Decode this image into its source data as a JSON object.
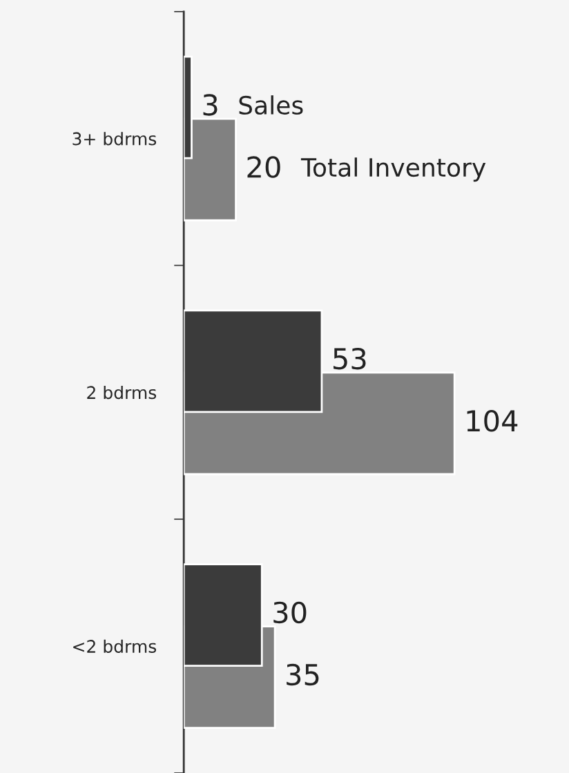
{
  "chart_data": {
    "type": "bar",
    "orientation": "horizontal",
    "categories": [
      "3+ bdrms",
      "2 bdrms",
      "<2 bdrms"
    ],
    "series": [
      {
        "name": "Sales",
        "color": "#3b3b3b",
        "values": [
          3,
          53,
          30
        ]
      },
      {
        "name": "Total Inventory",
        "color": "#818181",
        "values": [
          20,
          104,
          35
        ]
      }
    ],
    "xlim": [
      0,
      148
    ],
    "data_labels": true,
    "legend": false,
    "grid": false
  }
}
